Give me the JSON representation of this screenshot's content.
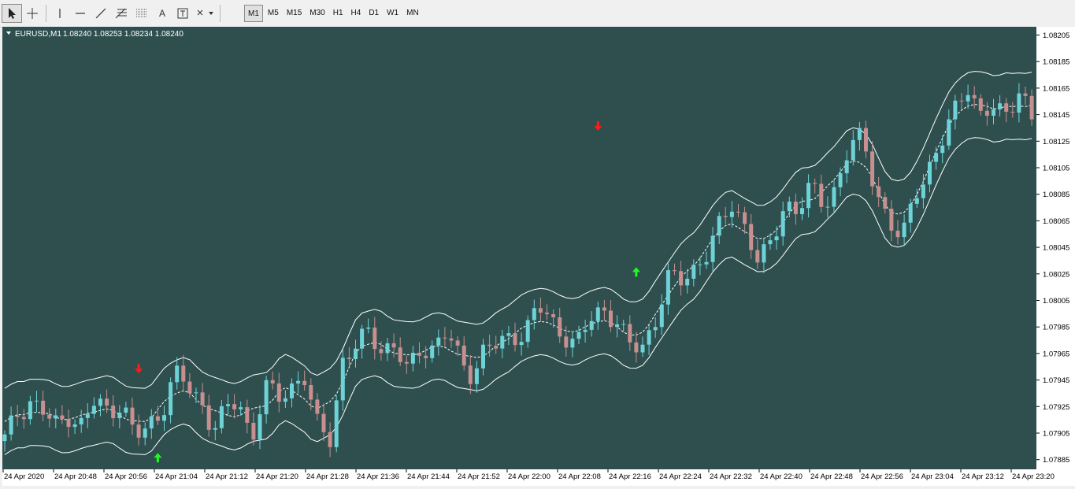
{
  "toolbar": {
    "tools": [
      "cursor-icon",
      "crosshair-icon",
      "vertical-line-icon",
      "horizontal-line-icon",
      "trendline-icon",
      "fibo-icon",
      "grid-icon",
      "text-icon",
      "label-icon",
      "arrows-icon"
    ],
    "text_tool": "A",
    "timeframes": [
      "M1",
      "M5",
      "M15",
      "M30",
      "H1",
      "H4",
      "D1",
      "W1",
      "MN"
    ],
    "active_timeframe": "M1"
  },
  "chart_data": {
    "type": "candlestick",
    "symbol_label": "EURUSD,M1",
    "ohlc_label": "1.08240 1.08253 1.08234 1.08240",
    "ylim": [
      1.0788,
      1.0821
    ],
    "yticks": [
      "1.08205",
      "1.08185",
      "1.08165",
      "1.08145",
      "1.08125",
      "1.08105",
      "1.08085",
      "1.08065",
      "1.08045",
      "1.08025",
      "1.08005",
      "1.07985",
      "1.07965",
      "1.07945",
      "1.07925",
      "1.07905",
      "1.07885"
    ],
    "xticks": [
      "24 Apr 2020",
      "24 Apr 20:48",
      "24 Apr 20:56",
      "24 Apr 21:04",
      "24 Apr 21:12",
      "24 Apr 21:20",
      "24 Apr 21:28",
      "24 Apr 21:36",
      "24 Apr 21:44",
      "24 Apr 21:52",
      "24 Apr 22:00",
      "24 Apr 22:08",
      "24 Apr 22:16",
      "24 Apr 22:24",
      "24 Apr 22:32",
      "24 Apr 22:40",
      "24 Apr 22:48",
      "24 Apr 22:56",
      "24 Apr 23:04",
      "24 Apr 23:12",
      "24 Apr 23:20"
    ],
    "anchor_close": [
      1.079,
      1.0792,
      1.0793,
      1.0792,
      1.0791,
      1.0792,
      1.0791,
      1.0793,
      1.0792,
      1.0793,
      1.079,
      1.0791,
      1.0792,
      1.0795,
      1.0794,
      1.0793,
      1.0791,
      1.0792,
      1.0793,
      1.079,
      1.0794,
      1.0793,
      1.0794,
      1.0795,
      1.0791,
      1.079,
      1.0796,
      1.0797,
      1.0798,
      1.0797,
      1.0797,
      1.0795,
      1.0797,
      1.0797,
      1.0798,
      1.0796,
      1.0795,
      1.0797,
      1.0797,
      1.0798,
      1.0798,
      1.08,
      1.0799,
      1.0798,
      1.0797,
      1.0799,
      1.08,
      1.0799,
      1.0797,
      1.0797,
      1.0799,
      1.0802,
      1.0802,
      1.0803,
      1.0804,
      1.0806,
      1.0808,
      1.0806,
      1.0803,
      1.0805,
      1.0808,
      1.0807,
      1.0809,
      1.0808,
      1.0809,
      1.0812,
      1.0813,
      1.0809,
      1.0806,
      1.0805,
      1.0809,
      1.081,
      1.0812,
      1.0815,
      1.0817,
      1.0814,
      1.0815,
      1.0815,
      1.0816,
      1.0814
    ],
    "arrows_down": [
      {
        "bar": 21,
        "value": 1.0795
      },
      {
        "bar": 93,
        "value": 1.08133
      }
    ],
    "arrows_up": [
      {
        "bar": 24,
        "value": 1.0789
      },
      {
        "bar": 99,
        "value": 1.0803
      }
    ],
    "colors": {
      "background": "#2f4f4f",
      "bull": "#6dd3d7",
      "bear": "#c78f8f",
      "band": "#ffffff",
      "arrow_down": "#ff1a1a",
      "arrow_up": "#1aff1a",
      "axis_bg": "#ffffff"
    }
  }
}
